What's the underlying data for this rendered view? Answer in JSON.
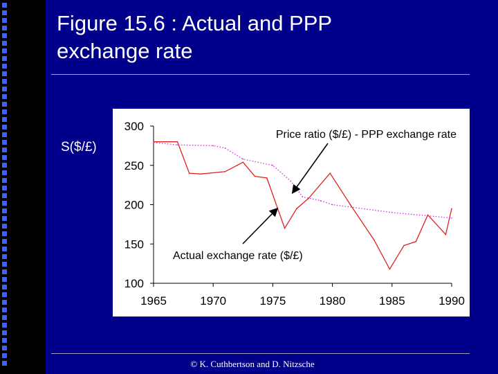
{
  "slide": {
    "title_line1": "Figure 15.6 : Actual and PPP",
    "title_line2": "exchange rate",
    "y_axis_label": "S($/£)",
    "copyright": "© K. Cuthbertson and D. Nitzsche",
    "background_color": "#00008b",
    "accent_color": "#4060ff"
  },
  "chart_data": {
    "type": "line",
    "title": "",
    "xlabel": "",
    "ylabel": "S($/£)",
    "xlim": [
      1965,
      1990
    ],
    "ylim": [
      100,
      300
    ],
    "x_ticks": [
      1965,
      1970,
      1975,
      1980,
      1985,
      1990
    ],
    "y_ticks": [
      100,
      150,
      200,
      250,
      300
    ],
    "grid": false,
    "series": [
      {
        "name": "Actual exchange rate ($/£)",
        "style": "solid",
        "color": "#dd2222",
        "points": [
          [
            1965,
            280
          ],
          [
            1967,
            280
          ],
          [
            1968,
            240
          ],
          [
            1969,
            239
          ],
          [
            1971,
            242
          ],
          [
            1972,
            250
          ],
          [
            1972.5,
            254
          ],
          [
            1973.5,
            236
          ],
          [
            1974.5,
            234
          ],
          [
            1976,
            170
          ],
          [
            1977,
            195
          ],
          [
            1978,
            208
          ],
          [
            1979.8,
            240
          ],
          [
            1981.5,
            200
          ],
          [
            1983.5,
            155
          ],
          [
            1984.8,
            118
          ],
          [
            1986,
            148
          ],
          [
            1987,
            153
          ],
          [
            1988,
            187
          ],
          [
            1989.5,
            162
          ],
          [
            1990,
            195
          ]
        ]
      },
      {
        "name": "Price ratio ($/£) - PPP exchange rate",
        "style": "dotted",
        "color": "#cc33cc",
        "points": [
          [
            1965,
            279
          ],
          [
            1967,
            276
          ],
          [
            1970,
            275
          ],
          [
            1971,
            272
          ],
          [
            1972.5,
            258
          ],
          [
            1975,
            250
          ],
          [
            1976.5,
            230
          ],
          [
            1977.5,
            210
          ],
          [
            1979,
            205
          ],
          [
            1980,
            200
          ],
          [
            1985,
            190
          ],
          [
            1990,
            183
          ]
        ]
      }
    ],
    "annotations": [
      {
        "text": "Price ratio ($/£) - PPP exchange rate",
        "arrow_to": [
          1976.7,
          216
        ]
      },
      {
        "text": "Actual exchange rate ($/£)",
        "arrow_to": [
          1976.6,
          195
        ]
      }
    ]
  }
}
